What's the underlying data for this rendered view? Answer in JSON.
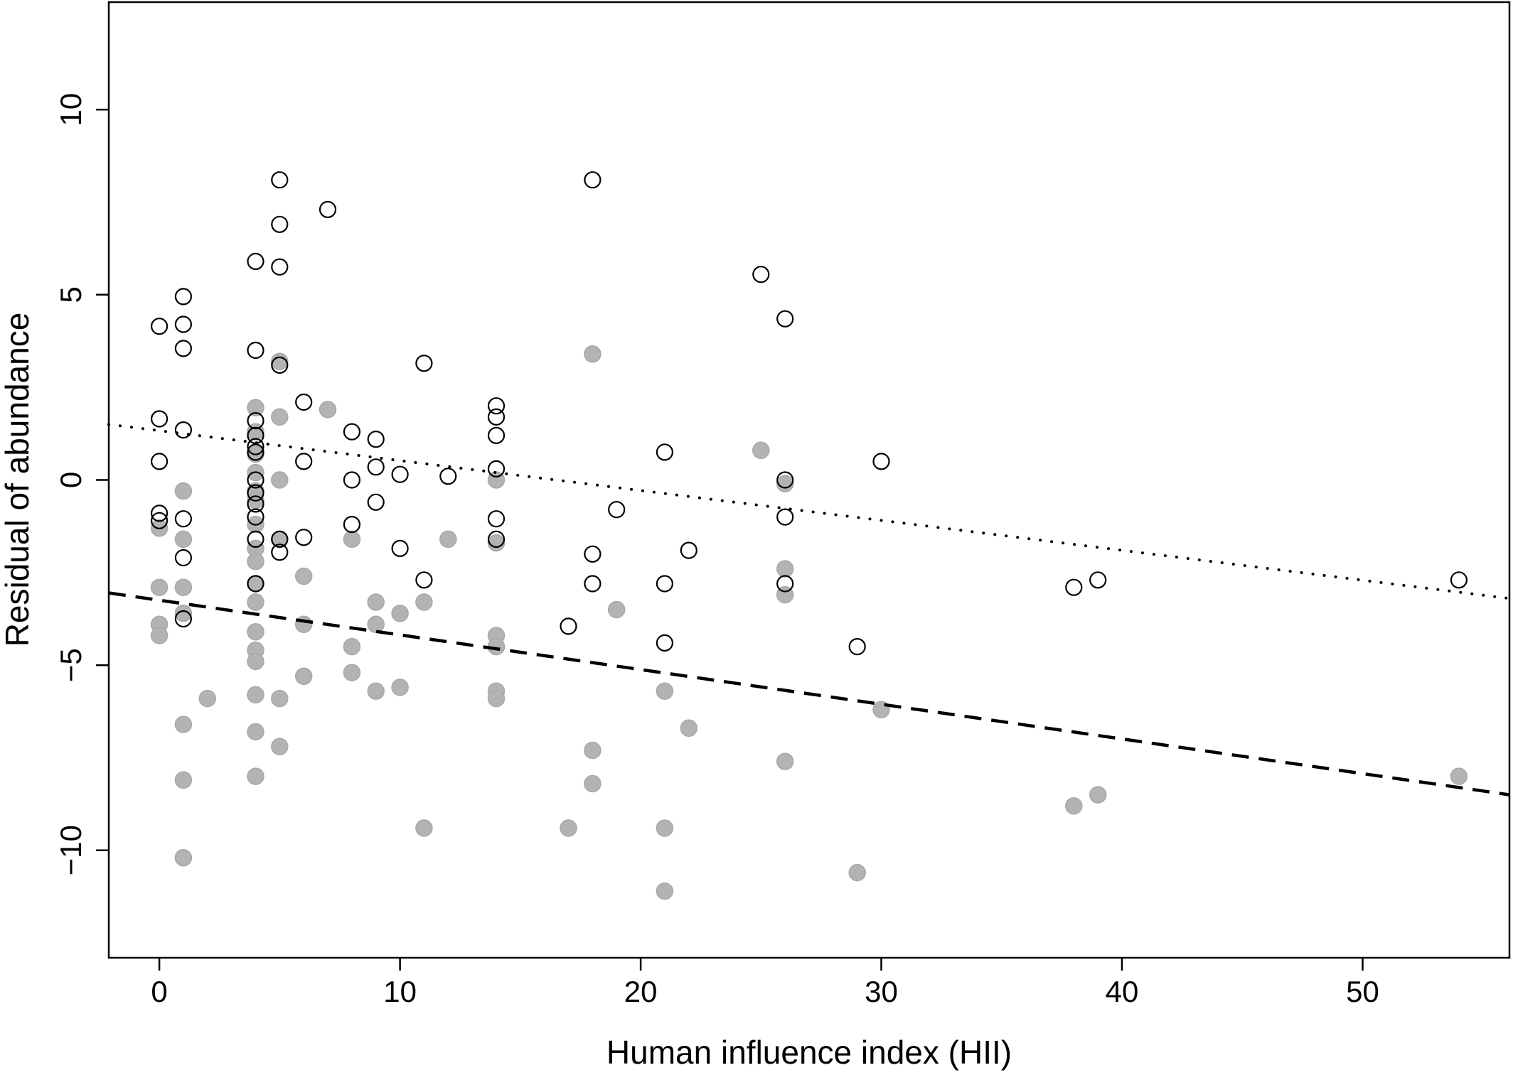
{
  "chart_data": {
    "type": "scatter",
    "title": "",
    "xlabel": "Human influence index (HII)",
    "ylabel": "Residual of abundance",
    "xlim": [
      -2.1,
      56.1
    ],
    "ylim": [
      -12.9,
      12.9
    ],
    "xticks": [
      0,
      10,
      20,
      30,
      40,
      50
    ],
    "yticks": [
      -10,
      -5,
      0,
      5,
      10
    ],
    "xtick_labels": [
      "0",
      "10",
      "20",
      "30",
      "40",
      "50"
    ],
    "ytick_labels": [
      "−10",
      "−5",
      "0",
      "5",
      "10"
    ],
    "grid": false,
    "legend": "none",
    "series": [
      {
        "marker": "filled-circle",
        "color": "#b3b3b3",
        "points": [
          [
            0,
            -1.3
          ],
          [
            0,
            -2.9
          ],
          [
            0,
            -3.9
          ],
          [
            0,
            -4.2
          ],
          [
            1,
            -0.3
          ],
          [
            1,
            -1.6
          ],
          [
            1,
            -2.9
          ],
          [
            1,
            -3.6
          ],
          [
            1,
            -6.6
          ],
          [
            1,
            -8.1
          ],
          [
            1,
            -10.2
          ],
          [
            2,
            -5.9
          ],
          [
            4,
            1.95
          ],
          [
            4,
            1.3
          ],
          [
            4,
            0.7
          ],
          [
            4,
            0.2
          ],
          [
            4,
            -0.3
          ],
          [
            4,
            -0.55
          ],
          [
            4,
            -1.2
          ],
          [
            4,
            -1.85
          ],
          [
            4,
            -2.2
          ],
          [
            4,
            -2.8
          ],
          [
            4,
            -3.3
          ],
          [
            4,
            -4.1
          ],
          [
            4,
            -4.6
          ],
          [
            4,
            -4.9
          ],
          [
            4,
            -5.8
          ],
          [
            4,
            -6.8
          ],
          [
            4,
            -8.0
          ],
          [
            5,
            3.2
          ],
          [
            5,
            1.7
          ],
          [
            5,
            0.0
          ],
          [
            5,
            -1.6
          ],
          [
            5,
            -5.9
          ],
          [
            5,
            -7.2
          ],
          [
            6,
            -2.6
          ],
          [
            6,
            -3.9
          ],
          [
            6,
            -5.3
          ],
          [
            7,
            1.9
          ],
          [
            8,
            -1.6
          ],
          [
            8,
            -4.5
          ],
          [
            8,
            -5.2
          ],
          [
            9,
            -3.3
          ],
          [
            9,
            -3.9
          ],
          [
            9,
            -5.7
          ],
          [
            10,
            -3.6
          ],
          [
            10,
            -5.6
          ],
          [
            11,
            -3.3
          ],
          [
            11,
            -9.4
          ],
          [
            12,
            -1.6
          ],
          [
            14,
            0.0
          ],
          [
            14,
            -1.7
          ],
          [
            14,
            -4.2
          ],
          [
            14,
            -4.5
          ],
          [
            14,
            -5.7
          ],
          [
            14,
            -5.9
          ],
          [
            17,
            -9.4
          ],
          [
            18,
            3.4
          ],
          [
            18,
            -7.3
          ],
          [
            18,
            -8.2
          ],
          [
            19,
            -3.5
          ],
          [
            21,
            -5.7
          ],
          [
            21,
            -9.4
          ],
          [
            21,
            -11.1
          ],
          [
            22,
            -6.7
          ],
          [
            25,
            0.8
          ],
          [
            26,
            -0.1
          ],
          [
            26,
            -2.4
          ],
          [
            26,
            -3.1
          ],
          [
            26,
            -7.6
          ],
          [
            29,
            -10.6
          ],
          [
            30,
            -6.2
          ],
          [
            38,
            -8.8
          ],
          [
            39,
            -8.5
          ],
          [
            54,
            -8.0
          ]
        ]
      },
      {
        "marker": "open-circle",
        "color": "#000000",
        "points": [
          [
            0,
            4.15
          ],
          [
            0,
            1.65
          ],
          [
            0,
            0.5
          ],
          [
            0,
            -0.9
          ],
          [
            0,
            -1.1
          ],
          [
            1,
            4.95
          ],
          [
            1,
            4.2
          ],
          [
            1,
            3.55
          ],
          [
            1,
            1.35
          ],
          [
            1,
            -1.05
          ],
          [
            1,
            -2.1
          ],
          [
            1,
            -3.75
          ],
          [
            4,
            5.9
          ],
          [
            4,
            3.5
          ],
          [
            4,
            1.6
          ],
          [
            4,
            1.2
          ],
          [
            4,
            0.9
          ],
          [
            4,
            0.75
          ],
          [
            4,
            0.0
          ],
          [
            4,
            -0.35
          ],
          [
            4,
            -0.65
          ],
          [
            4,
            -1.0
          ],
          [
            4,
            -1.6
          ],
          [
            4,
            -2.8
          ],
          [
            5,
            8.1
          ],
          [
            5,
            6.9
          ],
          [
            5,
            5.75
          ],
          [
            5,
            3.1
          ],
          [
            5,
            -1.6
          ],
          [
            5,
            -1.95
          ],
          [
            6,
            2.1
          ],
          [
            6,
            0.5
          ],
          [
            6,
            -1.55
          ],
          [
            7,
            7.3
          ],
          [
            8,
            1.3
          ],
          [
            8,
            0.0
          ],
          [
            8,
            -1.2
          ],
          [
            9,
            1.1
          ],
          [
            9,
            0.35
          ],
          [
            9,
            -0.6
          ],
          [
            10,
            0.15
          ],
          [
            10,
            -1.85
          ],
          [
            11,
            3.15
          ],
          [
            11,
            -2.7
          ],
          [
            12,
            0.1
          ],
          [
            14,
            2.0
          ],
          [
            14,
            1.7
          ],
          [
            14,
            1.2
          ],
          [
            14,
            0.3
          ],
          [
            14,
            -1.05
          ],
          [
            14,
            -1.6
          ],
          [
            17,
            -3.95
          ],
          [
            18,
            8.1
          ],
          [
            18,
            -2.0
          ],
          [
            18,
            -2.8
          ],
          [
            19,
            -0.8
          ],
          [
            21,
            0.75
          ],
          [
            21,
            -2.8
          ],
          [
            21,
            -4.4
          ],
          [
            22,
            -1.9
          ],
          [
            25,
            5.55
          ],
          [
            26,
            4.35
          ],
          [
            26,
            0.0
          ],
          [
            26,
            -1.0
          ],
          [
            26,
            -2.8
          ],
          [
            29,
            -4.5
          ],
          [
            30,
            0.5
          ],
          [
            38,
            -2.9
          ],
          [
            39,
            -2.7
          ],
          [
            54,
            -2.7
          ]
        ]
      }
    ],
    "lines": [
      {
        "style": "dotted",
        "color": "#000000",
        "x": [
          -2.1,
          56.1
        ],
        "y": [
          1.5,
          -3.2
        ]
      },
      {
        "style": "dashed",
        "color": "#000000",
        "x": [
          -2.1,
          56.1
        ],
        "y": [
          -3.05,
          -8.5
        ]
      }
    ]
  }
}
